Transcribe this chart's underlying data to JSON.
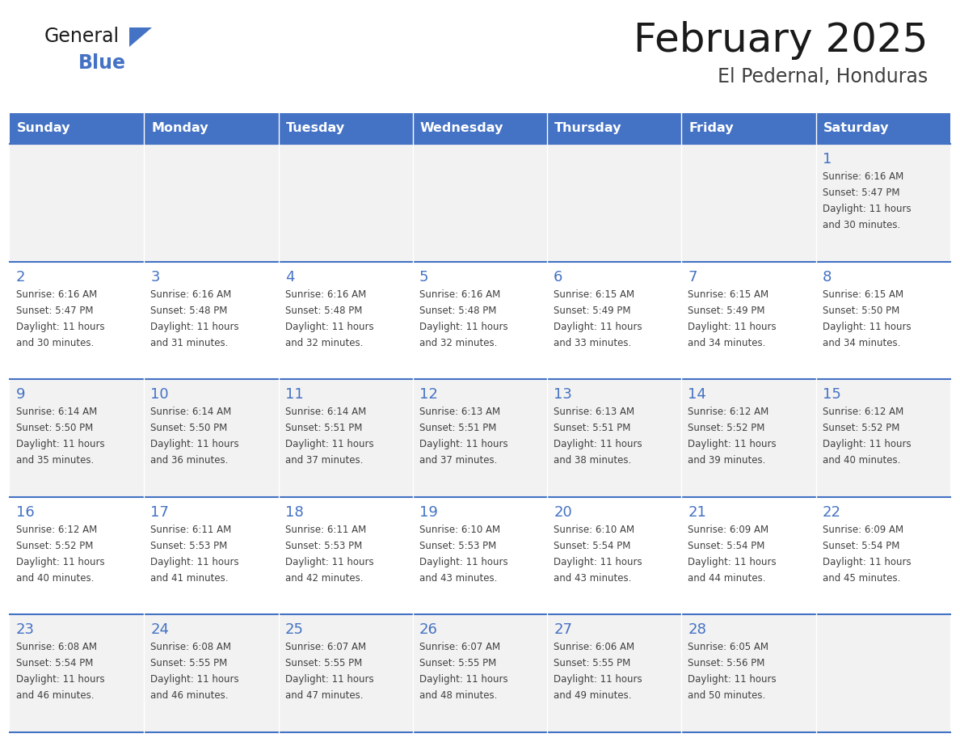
{
  "title": "February 2025",
  "subtitle": "El Pedernal, Honduras",
  "days_of_week": [
    "Sunday",
    "Monday",
    "Tuesday",
    "Wednesday",
    "Thursday",
    "Friday",
    "Saturday"
  ],
  "header_bg": "#4472C4",
  "header_text": "#FFFFFF",
  "cell_bg_odd": "#F2F2F2",
  "cell_bg_even": "#FFFFFF",
  "cell_border": "#4472C4",
  "day_num_color": "#4472C4",
  "text_color": "#404040",
  "title_color": "#1a1a1a",
  "logo_general_color": "#1a1a1a",
  "logo_blue_color": "#4472C4",
  "weeks": [
    {
      "days": [
        {
          "date": "",
          "sunrise": "",
          "sunset": "",
          "daylight": ""
        },
        {
          "date": "",
          "sunrise": "",
          "sunset": "",
          "daylight": ""
        },
        {
          "date": "",
          "sunrise": "",
          "sunset": "",
          "daylight": ""
        },
        {
          "date": "",
          "sunrise": "",
          "sunset": "",
          "daylight": ""
        },
        {
          "date": "",
          "sunrise": "",
          "sunset": "",
          "daylight": ""
        },
        {
          "date": "",
          "sunrise": "",
          "sunset": "",
          "daylight": ""
        },
        {
          "date": "1",
          "sunrise": "6:16 AM",
          "sunset": "5:47 PM",
          "daylight": "11 hours and 30 minutes."
        }
      ]
    },
    {
      "days": [
        {
          "date": "2",
          "sunrise": "6:16 AM",
          "sunset": "5:47 PM",
          "daylight": "11 hours and 30 minutes."
        },
        {
          "date": "3",
          "sunrise": "6:16 AM",
          "sunset": "5:48 PM",
          "daylight": "11 hours and 31 minutes."
        },
        {
          "date": "4",
          "sunrise": "6:16 AM",
          "sunset": "5:48 PM",
          "daylight": "11 hours and 32 minutes."
        },
        {
          "date": "5",
          "sunrise": "6:16 AM",
          "sunset": "5:48 PM",
          "daylight": "11 hours and 32 minutes."
        },
        {
          "date": "6",
          "sunrise": "6:15 AM",
          "sunset": "5:49 PM",
          "daylight": "11 hours and 33 minutes."
        },
        {
          "date": "7",
          "sunrise": "6:15 AM",
          "sunset": "5:49 PM",
          "daylight": "11 hours and 34 minutes."
        },
        {
          "date": "8",
          "sunrise": "6:15 AM",
          "sunset": "5:50 PM",
          "daylight": "11 hours and 34 minutes."
        }
      ]
    },
    {
      "days": [
        {
          "date": "9",
          "sunrise": "6:14 AM",
          "sunset": "5:50 PM",
          "daylight": "11 hours and 35 minutes."
        },
        {
          "date": "10",
          "sunrise": "6:14 AM",
          "sunset": "5:50 PM",
          "daylight": "11 hours and 36 minutes."
        },
        {
          "date": "11",
          "sunrise": "6:14 AM",
          "sunset": "5:51 PM",
          "daylight": "11 hours and 37 minutes."
        },
        {
          "date": "12",
          "sunrise": "6:13 AM",
          "sunset": "5:51 PM",
          "daylight": "11 hours and 37 minutes."
        },
        {
          "date": "13",
          "sunrise": "6:13 AM",
          "sunset": "5:51 PM",
          "daylight": "11 hours and 38 minutes."
        },
        {
          "date": "14",
          "sunrise": "6:12 AM",
          "sunset": "5:52 PM",
          "daylight": "11 hours and 39 minutes."
        },
        {
          "date": "15",
          "sunrise": "6:12 AM",
          "sunset": "5:52 PM",
          "daylight": "11 hours and 40 minutes."
        }
      ]
    },
    {
      "days": [
        {
          "date": "16",
          "sunrise": "6:12 AM",
          "sunset": "5:52 PM",
          "daylight": "11 hours and 40 minutes."
        },
        {
          "date": "17",
          "sunrise": "6:11 AM",
          "sunset": "5:53 PM",
          "daylight": "11 hours and 41 minutes."
        },
        {
          "date": "18",
          "sunrise": "6:11 AM",
          "sunset": "5:53 PM",
          "daylight": "11 hours and 42 minutes."
        },
        {
          "date": "19",
          "sunrise": "6:10 AM",
          "sunset": "5:53 PM",
          "daylight": "11 hours and 43 minutes."
        },
        {
          "date": "20",
          "sunrise": "6:10 AM",
          "sunset": "5:54 PM",
          "daylight": "11 hours and 43 minutes."
        },
        {
          "date": "21",
          "sunrise": "6:09 AM",
          "sunset": "5:54 PM",
          "daylight": "11 hours and 44 minutes."
        },
        {
          "date": "22",
          "sunrise": "6:09 AM",
          "sunset": "5:54 PM",
          "daylight": "11 hours and 45 minutes."
        }
      ]
    },
    {
      "days": [
        {
          "date": "23",
          "sunrise": "6:08 AM",
          "sunset": "5:54 PM",
          "daylight": "11 hours and 46 minutes."
        },
        {
          "date": "24",
          "sunrise": "6:08 AM",
          "sunset": "5:55 PM",
          "daylight": "11 hours and 46 minutes."
        },
        {
          "date": "25",
          "sunrise": "6:07 AM",
          "sunset": "5:55 PM",
          "daylight": "11 hours and 47 minutes."
        },
        {
          "date": "26",
          "sunrise": "6:07 AM",
          "sunset": "5:55 PM",
          "daylight": "11 hours and 48 minutes."
        },
        {
          "date": "27",
          "sunrise": "6:06 AM",
          "sunset": "5:55 PM",
          "daylight": "11 hours and 49 minutes."
        },
        {
          "date": "28",
          "sunrise": "6:05 AM",
          "sunset": "5:56 PM",
          "daylight": "11 hours and 50 minutes."
        },
        {
          "date": "",
          "sunrise": "",
          "sunset": "",
          "daylight": ""
        }
      ]
    }
  ]
}
